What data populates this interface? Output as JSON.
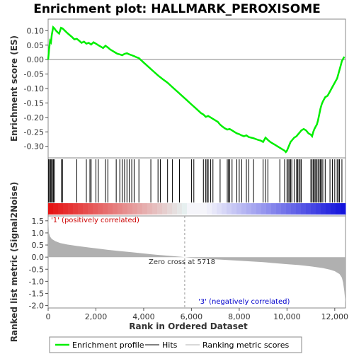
{
  "chart_data": {
    "type": "line",
    "title": "Enrichment plot: HALLMARK_PEROXISOME",
    "es_panel": {
      "ylabel": "Enrichment score (ES)",
      "ylim": [
        -0.34,
        0.14
      ],
      "yticks": [
        "0.10",
        "0.05",
        "0.00",
        "-0.05",
        "-0.10",
        "-0.15",
        "-0.20",
        "-0.25",
        "-0.30"
      ],
      "ytick_values": [
        0.1,
        0.05,
        0.0,
        -0.05,
        -0.1,
        -0.15,
        -0.2,
        -0.25,
        -0.3
      ],
      "series": [
        {
          "name": "Enrichment profile",
          "color": "#00ff00",
          "x": [
            0,
            40,
            80,
            120,
            150,
            210,
            260,
            330,
            390,
            460,
            540,
            600,
            700,
            800,
            900,
            1000,
            1100,
            1200,
            1300,
            1400,
            1500,
            1600,
            1700,
            1800,
            1900,
            2000,
            2100,
            2200,
            2300,
            2400,
            2500,
            2600,
            2700,
            2800,
            2900,
            3000,
            3100,
            3200,
            3300,
            3400,
            3500,
            3600,
            3700,
            3800,
            4000,
            4200,
            4400,
            4600,
            4800,
            5000,
            5200,
            5400,
            5600,
            5800,
            6000,
            6200,
            6400,
            6500,
            6600,
            6700,
            6800,
            6900,
            7000,
            7100,
            7200,
            7300,
            7400,
            7500,
            7600,
            7700,
            7800,
            7900,
            8000,
            8100,
            8200,
            8300,
            8400,
            8500,
            8600,
            8700,
            8800,
            8900,
            9000,
            9100,
            9200,
            9300,
            9400,
            9500,
            9600,
            9700,
            9800,
            9900,
            9950,
            10000,
            10050,
            10100,
            10150,
            10200,
            10300,
            10400,
            10450,
            10500,
            10550,
            10600,
            10700,
            10800,
            10900,
            11000,
            11050,
            11100,
            11150,
            11200,
            11250,
            11300,
            11350,
            11400,
            11450,
            11500,
            11600,
            11700,
            11800,
            11900,
            12000,
            12100,
            12150,
            12200,
            12250,
            12300,
            12400
          ],
          "y": [
            0.0,
            0.035,
            0.065,
            0.06,
            0.085,
            0.112,
            0.108,
            0.1,
            0.095,
            0.09,
            0.11,
            0.108,
            0.1,
            0.092,
            0.085,
            0.078,
            0.07,
            0.072,
            0.065,
            0.058,
            0.062,
            0.055,
            0.058,
            0.052,
            0.06,
            0.055,
            0.05,
            0.045,
            0.04,
            0.048,
            0.042,
            0.035,
            0.03,
            0.025,
            0.02,
            0.018,
            0.015,
            0.02,
            0.022,
            0.018,
            0.015,
            0.012,
            0.008,
            0.005,
            -0.01,
            -0.025,
            -0.04,
            -0.055,
            -0.068,
            -0.08,
            -0.095,
            -0.11,
            -0.125,
            -0.14,
            -0.155,
            -0.17,
            -0.185,
            -0.19,
            -0.198,
            -0.195,
            -0.2,
            -0.205,
            -0.21,
            -0.215,
            -0.225,
            -0.232,
            -0.238,
            -0.242,
            -0.24,
            -0.245,
            -0.25,
            -0.255,
            -0.258,
            -0.262,
            -0.265,
            -0.262,
            -0.268,
            -0.27,
            -0.272,
            -0.275,
            -0.278,
            -0.28,
            -0.285,
            -0.27,
            -0.278,
            -0.285,
            -0.29,
            -0.295,
            -0.3,
            -0.305,
            -0.31,
            -0.315,
            -0.32,
            -0.315,
            -0.305,
            -0.295,
            -0.285,
            -0.28,
            -0.27,
            -0.265,
            -0.26,
            -0.255,
            -0.25,
            -0.245,
            -0.24,
            -0.245,
            -0.255,
            -0.26,
            -0.265,
            -0.25,
            -0.24,
            -0.232,
            -0.225,
            -0.21,
            -0.19,
            -0.17,
            -0.155,
            -0.145,
            -0.13,
            -0.125,
            -0.11,
            -0.095,
            -0.08,
            -0.065,
            -0.05,
            -0.035,
            -0.02,
            -0.005,
            0.01
          ]
        }
      ]
    },
    "hits_panel": {
      "legend": "Hits",
      "hit_ranks": [
        20,
        60,
        100,
        140,
        180,
        220,
        260,
        560,
        600,
        1200,
        1600,
        1750,
        1800,
        2000,
        2100,
        2400,
        2500,
        2850,
        3000,
        3100,
        3200,
        3300,
        3400,
        3500,
        3600,
        3800,
        4300,
        4600,
        4700,
        5000,
        5200,
        5500,
        6000,
        6100,
        6500,
        6600,
        6650,
        6700,
        6800,
        6900,
        7200,
        7500,
        7550,
        7600,
        7700,
        7900,
        8000,
        8100,
        8300,
        8400,
        8600,
        9000,
        9100,
        9200,
        9700,
        9900,
        10000,
        10050,
        10100,
        10150,
        10200,
        10300,
        10400,
        10450,
        10500,
        10550,
        10600,
        11000,
        11050,
        11100,
        11150,
        11200,
        11250,
        11300,
        11350,
        11400,
        11450,
        11500,
        11600,
        11800,
        11900,
        12000,
        12100,
        12150,
        12200,
        12300
      ]
    },
    "metric_panel": {
      "ylabel": "Ranked list metric (Signal2Noise)",
      "xlabel": "Rank in Ordered Dataset",
      "ylim": [
        -2.1,
        1.7
      ],
      "yticks": [
        "1.5",
        "1.0",
        "0.5",
        "0.0",
        "-0.5",
        "-1.0",
        "-1.5",
        "-2.0"
      ],
      "ytick_values": [
        1.5,
        1.0,
        0.5,
        0.0,
        -0.5,
        -1.0,
        -1.5,
        -2.0
      ],
      "fill_color": "#b0b0b0",
      "x": [
        0,
        30,
        80,
        150,
        300,
        500,
        800,
        1200,
        1600,
        2000,
        2500,
        3000,
        3500,
        4000,
        4500,
        5000,
        5500,
        5718,
        6000,
        6500,
        7000,
        7500,
        8000,
        8500,
        9000,
        9500,
        10000,
        10500,
        11000,
        11500,
        11800,
        12000,
        12200,
        12300,
        12350,
        12400,
        12450
      ],
      "y": [
        1.7,
        1.0,
        0.85,
        0.75,
        0.66,
        0.58,
        0.52,
        0.46,
        0.41,
        0.36,
        0.3,
        0.25,
        0.2,
        0.15,
        0.1,
        0.06,
        0.02,
        0.0,
        -0.03,
        -0.06,
        -0.09,
        -0.12,
        -0.15,
        -0.18,
        -0.21,
        -0.25,
        -0.29,
        -0.33,
        -0.38,
        -0.45,
        -0.52,
        -0.58,
        -0.7,
        -0.85,
        -1.05,
        -1.4,
        -1.9
      ],
      "annotations": {
        "positive": "'1' (positively correlated)",
        "negative": "'3' (negatively correlated)",
        "zero_cross": "Zero cross at 5718"
      },
      "positive_color": "#cc0000",
      "negative_color": "#0000cc"
    },
    "xaxis": {
      "xlim": [
        0,
        12450
      ],
      "xtick_values": [
        0,
        2000,
        4000,
        6000,
        8000,
        10000,
        12000
      ],
      "xticks": [
        "0",
        "2,000",
        "4,000",
        "6,000",
        "8,000",
        "10,000",
        "12,000"
      ]
    },
    "legend": {
      "placement": "bottom",
      "items": [
        "Enrichment profile",
        "Hits",
        "Ranking metric scores"
      ],
      "colors": [
        "#00ff00",
        "#000000",
        "#b0b0b0"
      ]
    }
  }
}
